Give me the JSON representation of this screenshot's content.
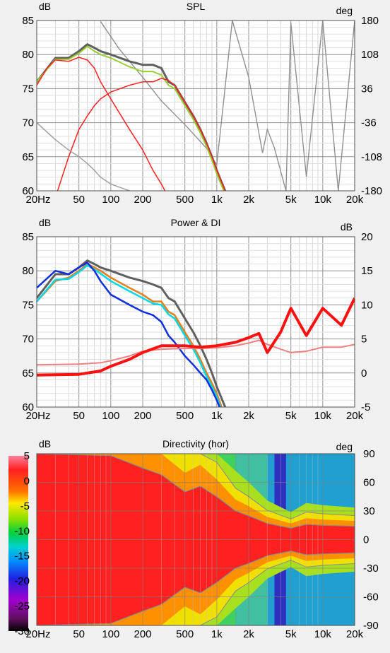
{
  "chart_data": [
    {
      "type": "line",
      "title": "SPL",
      "ylabel_left": "dB",
      "ylabel_right": "deg",
      "x_scale": "log",
      "xlim": [
        20,
        20000
      ],
      "x_ticks": [
        "20Hz",
        "50",
        "100",
        "200",
        "500",
        "1k",
        "2k",
        "5k",
        "10k",
        "20k"
      ],
      "ylim": [
        60,
        85
      ],
      "y_ticks": [
        "60",
        "65",
        "70",
        "75",
        "80",
        "85"
      ],
      "y2lim": [
        -180,
        180
      ],
      "y2_ticks": [
        "-180",
        "-108",
        "-36",
        "36",
        "108",
        "180"
      ],
      "grid": true,
      "series": [
        {
          "color": "#606060",
          "x": [
            20,
            30,
            40,
            50,
            60,
            70,
            80,
            100,
            150,
            200,
            250,
            300,
            350,
            400,
            500,
            600,
            700,
            800,
            900,
            1000,
            1200,
            1500
          ],
          "values": [
            76,
            79.5,
            79.5,
            80.5,
            81.5,
            81,
            80.5,
            80,
            79,
            78.5,
            78.5,
            78,
            76,
            75.5,
            73,
            71,
            69,
            67,
            65,
            63,
            60,
            56
          ]
        },
        {
          "color": "#9acd32",
          "x": [
            20,
            30,
            40,
            50,
            60,
            70,
            80,
            100,
            150,
            200,
            250,
            300,
            350,
            400,
            500,
            600,
            700,
            800,
            900,
            1000,
            1200,
            1500
          ],
          "values": [
            76,
            79.3,
            79.3,
            80.2,
            81.2,
            80.5,
            80,
            79.5,
            78.2,
            77.5,
            77.5,
            77,
            75.5,
            75,
            72.5,
            70.5,
            68.5,
            66.5,
            64.5,
            62.5,
            59.5,
            55.5
          ]
        },
        {
          "color": "#ff2020",
          "x": [
            20,
            25,
            30,
            40,
            50,
            60,
            70,
            80,
            100,
            150,
            200,
            250,
            300,
            350
          ],
          "values": [
            75.5,
            78,
            79.2,
            79,
            79.6,
            79.2,
            78,
            76,
            73.5,
            69,
            66,
            63,
            61,
            59
          ]
        },
        {
          "color": "#ff2020",
          "x": [
            30,
            40,
            50,
            60,
            70,
            80,
            100,
            150,
            200,
            250,
            300,
            350,
            400,
            500,
            600,
            700,
            800,
            900,
            1000,
            1200,
            1500
          ],
          "values": [
            59,
            65,
            69,
            71,
            72.5,
            73.5,
            74.5,
            75.5,
            76,
            76,
            76.5,
            76.2,
            75.5,
            73,
            71,
            69,
            67,
            65,
            63,
            60,
            56
          ]
        },
        {
          "color": "#a0a0a0",
          "x": [
            20,
            30,
            40,
            50,
            60,
            70,
            80,
            100,
            150,
            200,
            300,
            500,
            700,
            1000,
            1200
          ],
          "values": [
            70,
            67.5,
            66,
            65,
            64,
            63,
            62,
            61,
            60,
            59,
            58,
            57,
            57,
            58,
            58
          ]
        }
      ],
      "phase": {
        "color": "#909090",
        "x": [
          80,
          120,
          200,
          300,
          500,
          800,
          1000,
          1400,
          2000,
          2700,
          3000,
          3500,
          4500,
          5000,
          7000,
          10000,
          14000,
          20000
        ],
        "values": [
          178,
          120,
          60,
          10,
          -40,
          -90,
          -125,
          180,
          60,
          -100,
          -50,
          -90,
          -180,
          175,
          -150,
          180,
          -180,
          180
        ]
      }
    },
    {
      "type": "line",
      "title": "Power & DI",
      "ylabel_left": "dB",
      "ylabel_right": "dB",
      "x_scale": "log",
      "xlim": [
        20,
        20000
      ],
      "x_ticks": [
        "20Hz",
        "50",
        "100",
        "200",
        "500",
        "1k",
        "2k",
        "5k",
        "10k",
        "20k"
      ],
      "ylim": [
        60,
        85
      ],
      "y_ticks": [
        "60",
        "65",
        "70",
        "75",
        "80",
        "85"
      ],
      "y2lim": [
        -5,
        20
      ],
      "y2_ticks": [
        "-5",
        "0",
        "5",
        "10",
        "15",
        "20"
      ],
      "grid": true,
      "series": [
        {
          "color": "#606060",
          "x": [
            20,
            30,
            40,
            50,
            60,
            70,
            80,
            100,
            150,
            200,
            250,
            300,
            350,
            400,
            500,
            600,
            700,
            800,
            900,
            1000,
            1200,
            1500
          ],
          "values": [
            76,
            79.5,
            79.5,
            80.5,
            81.5,
            81,
            80.5,
            80,
            79,
            78.5,
            78,
            77.5,
            76,
            75.5,
            73,
            71,
            69,
            67,
            65,
            63,
            60,
            56
          ]
        },
        {
          "color": "#e08020",
          "x": [
            20,
            30,
            40,
            50,
            60,
            70,
            80,
            100,
            150,
            200,
            250,
            300,
            350,
            400,
            500,
            600,
            700,
            800,
            900,
            1000,
            1200,
            1500
          ],
          "values": [
            75.5,
            78.5,
            79,
            80,
            81,
            80.5,
            80,
            79,
            77.5,
            76.5,
            75.5,
            75.5,
            74,
            73.5,
            71,
            69,
            67,
            65,
            63.5,
            62,
            58.5,
            55
          ]
        },
        {
          "color": "#00d8e8",
          "x": [
            20,
            30,
            40,
            50,
            60,
            70,
            80,
            100,
            150,
            200,
            250,
            300,
            350,
            400,
            500,
            600,
            700,
            800,
            900,
            1000,
            1200,
            1500
          ],
          "values": [
            75.5,
            78.7,
            78.8,
            79.8,
            80.8,
            80.2,
            79.6,
            78.5,
            77,
            76,
            75.2,
            75,
            73.6,
            73,
            70.5,
            68.5,
            66.5,
            64.5,
            63,
            61.5,
            58,
            54.5
          ]
        },
        {
          "color": "#1030e0",
          "x": [
            20,
            30,
            40,
            50,
            60,
            70,
            80,
            100,
            150,
            200,
            250,
            300,
            350,
            400,
            500,
            600,
            700,
            800,
            900,
            1000,
            1200,
            1500
          ],
          "values": [
            77.5,
            80,
            79.5,
            80.5,
            81.2,
            80,
            78.5,
            76.5,
            75,
            74,
            73.5,
            72.5,
            70.5,
            69.5,
            67.5,
            66.2,
            65,
            64,
            62.5,
            61,
            58,
            55
          ]
        }
      ],
      "series_right": [
        {
          "color": "#f08080",
          "x": [
            20,
            50,
            80,
            100,
            150,
            200,
            300,
            500,
            700,
            1000,
            1500,
            2000,
            2500,
            3000,
            4000,
            5000,
            7000,
            10000,
            15000,
            20000
          ],
          "values": [
            1.2,
            1.3,
            1.5,
            1.8,
            2.5,
            3.2,
            3.5,
            3.6,
            3.6,
            3.7,
            4,
            4.4,
            4.8,
            4.2,
            3.5,
            3,
            3.2,
            3.8,
            3.8,
            4.2
          ]
        },
        {
          "color": "#ff1010",
          "x": [
            20,
            50,
            80,
            100,
            150,
            200,
            300,
            500,
            700,
            1000,
            1500,
            2000,
            2500,
            3000,
            4000,
            5000,
            7000,
            10000,
            15000,
            20000
          ],
          "values": [
            -0.3,
            -0.2,
            0.3,
            1,
            2,
            3,
            4,
            4,
            3.8,
            4,
            4.5,
            5.2,
            5.8,
            3,
            6,
            9.5,
            5.5,
            9.5,
            7,
            11
          ]
        }
      ]
    },
    {
      "type": "heatmap",
      "title": "Directivity (hor)",
      "ylabel_left": "dB",
      "ylabel_right": "deg",
      "x_scale": "log",
      "xlim": [
        20,
        20000
      ],
      "x_ticks": [
        "20Hz",
        "50",
        "100",
        "200",
        "500",
        "1k",
        "2k",
        "5k",
        "10k",
        "20k"
      ],
      "ylim": [
        -90,
        90
      ],
      "y_ticks": [
        "-90",
        "-60",
        "-30",
        "0",
        "30",
        "60",
        "90"
      ],
      "colorbar_range": [
        -30,
        5
      ],
      "colorbar_ticks": [
        "5",
        "0",
        "-5",
        "-10",
        "-15",
        "-20",
        "-25",
        "-30"
      ],
      "beamwidth_6dB_deg": {
        "x": [
          20,
          100,
          200,
          300,
          500,
          700,
          1000,
          1500,
          2000,
          3000,
          5000,
          7000,
          10000,
          20000
        ],
        "values": [
          90,
          88,
          75,
          68,
          50,
          56,
          45,
          30,
          25,
          17,
          12,
          16,
          15,
          14
        ]
      }
    }
  ]
}
